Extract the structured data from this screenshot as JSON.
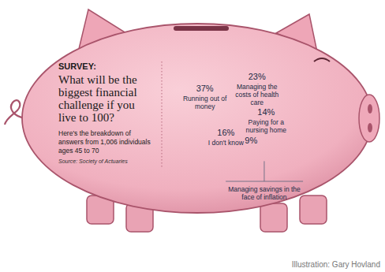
{
  "chart_data": {
    "type": "pie",
    "title": "What will be the biggest financial challenge if you live to 100?",
    "subtitle": "Here's the breakdown of answers from 1,006 individuals ages 45 to 70",
    "annotations": [
      "SURVEY:",
      "Source: Society of Actuaries",
      "Illustration: Gary Hovland"
    ],
    "categories": [
      "Managing the costs of health care",
      "Paying for a nursing home",
      "Managing savings in the face of inflation",
      "I don't know",
      "Running out of money"
    ],
    "values": [
      23,
      14,
      9,
      16,
      37
    ],
    "value_labels": [
      "23%",
      "14%",
      "9%",
      "16%",
      "37%"
    ],
    "color": "#a9bcd8",
    "data_labels": true
  }
}
